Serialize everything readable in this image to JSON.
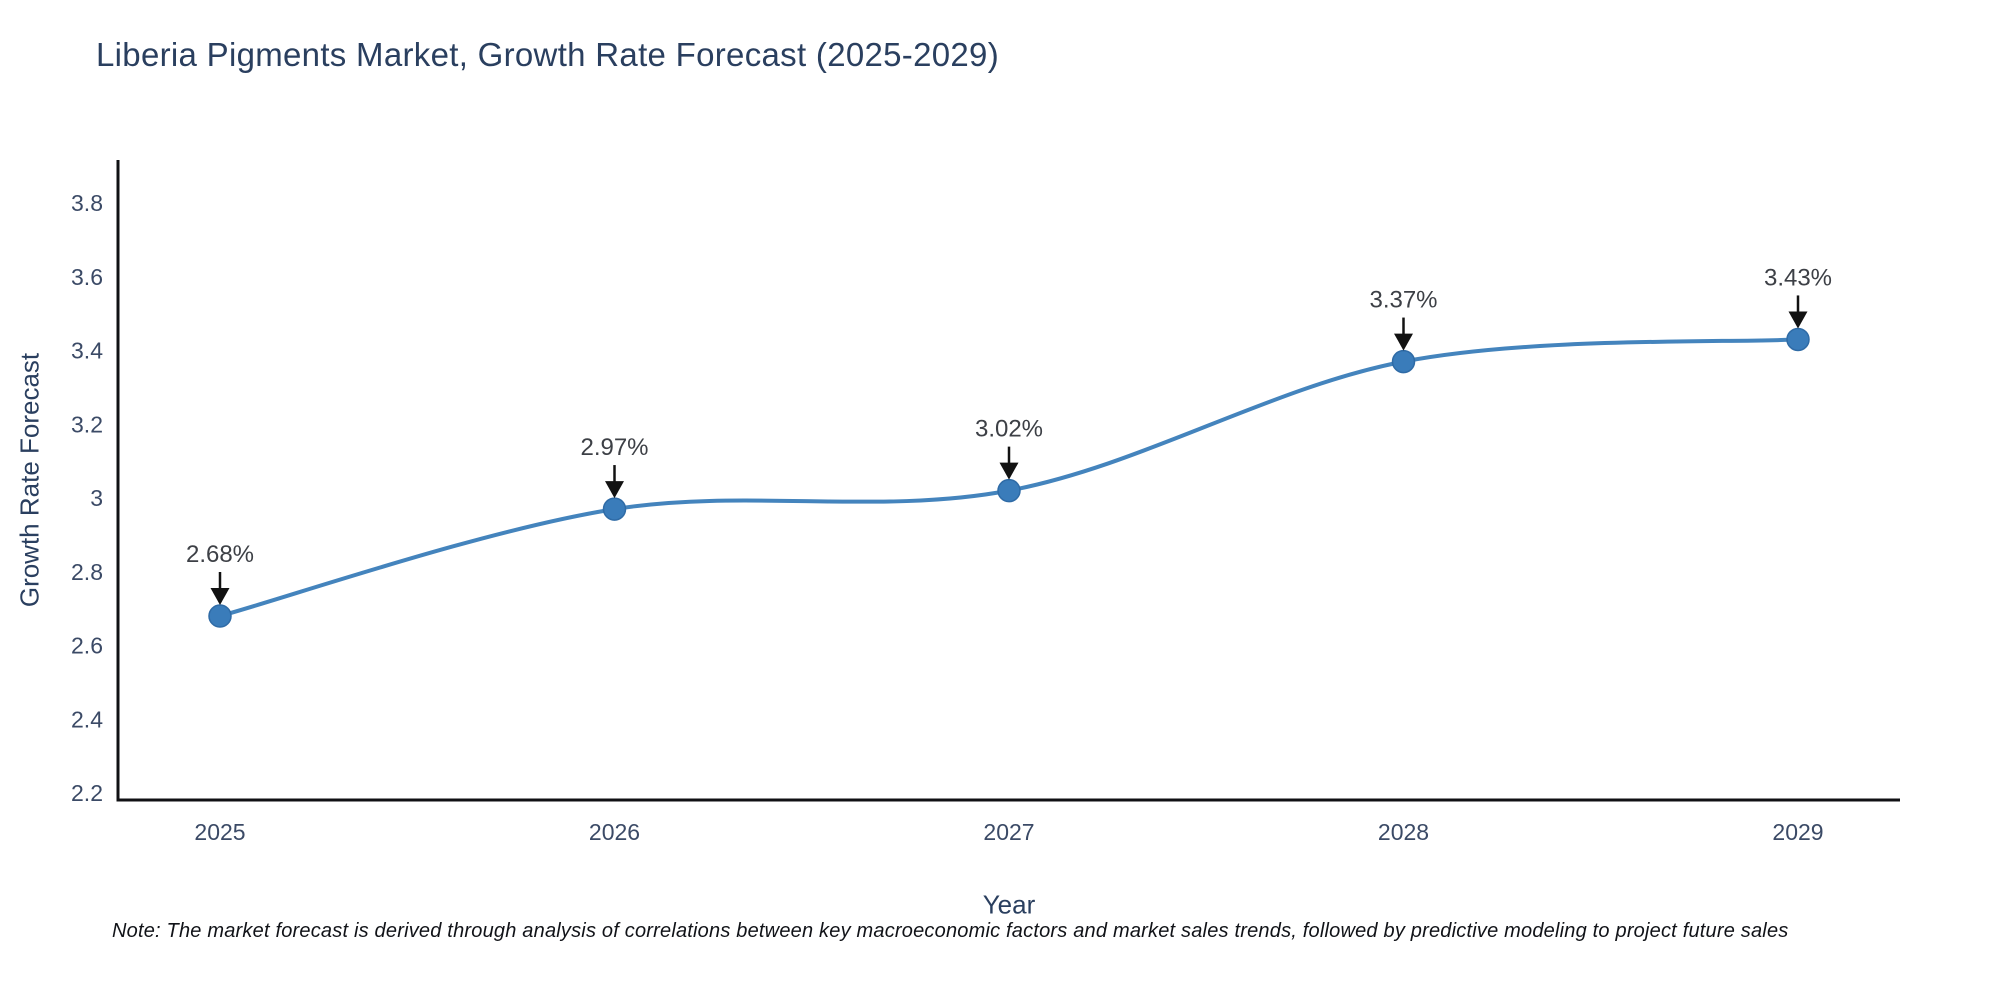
{
  "title": "Liberia Pigments Market, Growth Rate Forecast (2025-2029)",
  "note": "Note: The market forecast is derived through analysis of correlations between key macroeconomic factors and market sales trends, followed by predictive modeling to project future sales",
  "chart_data": {
    "type": "line",
    "line_shape": "spline",
    "title": "Liberia Pigments Market, Growth Rate Forecast (2025-2029)",
    "xlabel": "Year",
    "ylabel": "Growth Rate Forecast",
    "categories": [
      "2025",
      "2026",
      "2027",
      "2028",
      "2029"
    ],
    "values": [
      2.68,
      2.97,
      3.02,
      3.37,
      3.43
    ],
    "point_labels": [
      "2.68%",
      "2.97%",
      "3.02%",
      "3.37%",
      "3.43%"
    ],
    "ytick_labels": [
      "2.2",
      "2.4",
      "2.6",
      "2.8",
      "3",
      "3.2",
      "3.4",
      "3.6",
      "3.8"
    ],
    "yticks": [
      2.2,
      2.4,
      2.6,
      2.8,
      3.0,
      3.2,
      3.4,
      3.6,
      3.8
    ],
    "ylim": [
      2.18,
      3.92
    ],
    "grid": false,
    "legend": "none",
    "annotations_have_arrows": true,
    "colors": {
      "line": "#4484bd",
      "marker": "#3a7cba",
      "marker_edge": "#2f6ba6",
      "axis_line": "#101114",
      "tick_text": "#3b4a66",
      "heading_text": "#2a3f5f",
      "annotation_text": "#3d4046",
      "arrow": "#121212",
      "background": "#ffffff"
    }
  }
}
